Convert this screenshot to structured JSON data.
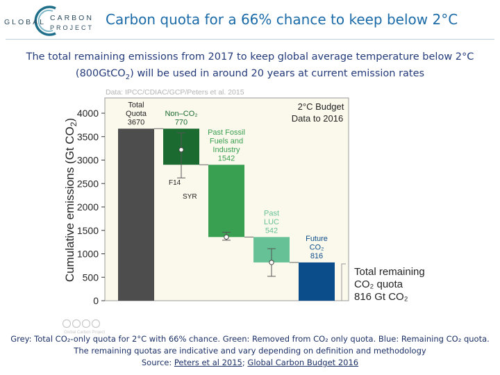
{
  "header": {
    "logo_left": "GLOBAL",
    "logo_right_top": "CARBON",
    "logo_right_bottom": "PROJECT",
    "title": "Carbon quota for a 66% chance to keep below 2°C"
  },
  "subtitle": {
    "line1": "The total remaining emissions from 2017 to keep global average temperature below 2°C",
    "line2_pre": "(800GtCO",
    "line2_sub": "2",
    "line2_post": ") will be used in around 20 years at current emission rates"
  },
  "license": {
    "text": "Global Carbon Project"
  },
  "chart_data": {
    "type": "bar",
    "subtype": "waterfall",
    "source": "Data: IPCC/CDIAC/GCP/Peters et al. 2015",
    "ylabel_pre": "Cumulative emissions (Gt CO",
    "ylabel_sub": "2",
    "ylabel_post": ")",
    "ylim": [
      0,
      4200
    ],
    "yticks": [
      0,
      500,
      1000,
      1500,
      2000,
      2500,
      3000,
      3500,
      4000
    ],
    "budget_box": {
      "line1": "2°C Budget",
      "line2": "Data to 2016"
    },
    "bars": [
      {
        "name": "total-quota",
        "label_lines": [
          "Total",
          "Quota",
          "3670"
        ],
        "bottom": 0,
        "top": 3670,
        "color": "#4d4d4d"
      },
      {
        "name": "non-co2",
        "label_lines": [
          "Non–CO₂",
          "770"
        ],
        "bottom": 2900,
        "top": 3670,
        "color": "#1b6b30",
        "marker": 3220,
        "err_low": 2620,
        "err_high": 3580,
        "err_labels": [
          "F14",
          "SYR"
        ]
      },
      {
        "name": "past-fossil",
        "label_lines": [
          "Past Fossil",
          "Fuels and",
          "Industry",
          "1542"
        ],
        "bottom": 1358,
        "top": 2900,
        "color": "#3aa051",
        "marker": 1358,
        "err_low": 1290,
        "err_high": 1460
      },
      {
        "name": "past-luc",
        "label_lines": [
          "Past",
          "LUC",
          "542"
        ],
        "bottom": 816,
        "top": 1358,
        "color": "#66c196",
        "marker": 816,
        "err_low": 520,
        "err_high": 1110
      },
      {
        "name": "future-co2",
        "label_lines": [
          "Future",
          "CO₂",
          "816"
        ],
        "bottom": 0,
        "top": 816,
        "color": "#0a4d8a"
      }
    ],
    "remaining": {
      "line1": "Total remaining",
      "line2": "CO₂ quota",
      "line3": "816 Gt CO₂"
    }
  },
  "caption": {
    "line1": "Grey: Total CO₂-only quota for 2°C with 66% chance. Green: Removed from CO₂ only quota. Blue: Remaining CO₂ quota.",
    "line2": "The remaining quotas are indicative and vary depending on definition and methodology",
    "source_label": "Source: ",
    "link1": "Peters et al 2015",
    "sep": "; ",
    "link2": "Global Carbon Budget 2016"
  },
  "colors": {
    "title": "#1a6aa8",
    "subtitle": "#233a7a",
    "panel_bg": "#fbf8ec"
  }
}
